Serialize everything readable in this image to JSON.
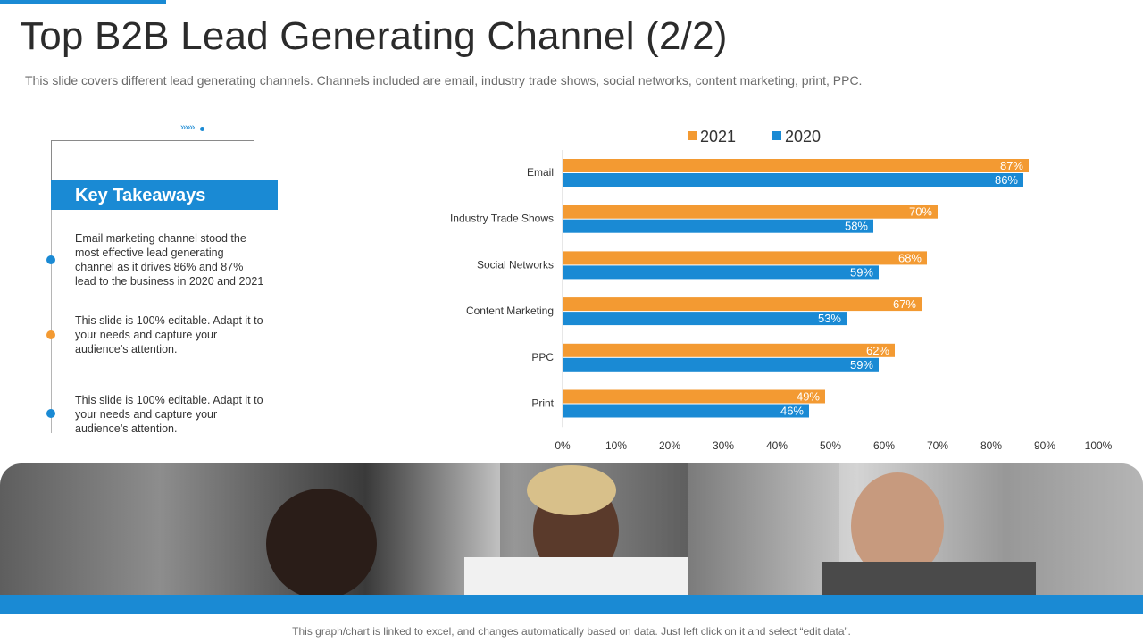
{
  "title": "Top B2B Lead Generating Channel (2/2)",
  "subtitle": "This slide covers different lead generating channels. Channels included are email, industry trade shows, social networks, content marketing, print, PPC.",
  "decor": {
    "arrows": "»»»"
  },
  "takeaways": {
    "header": "Key Takeaways",
    "items": [
      {
        "text": "Email marketing channel stood the\nmost effective lead generating\n channel as it drives 86% and 87%\nlead to the business in 2020 and 2021",
        "dot_color": "#1a8ad4"
      },
      {
        "text": "This slide is 100% editable. Adapt it to\nyour needs and capture your\naudience’s attention.",
        "dot_color": "#f39a32"
      },
      {
        "text": "This slide is 100% editable. Adapt it to\nyour needs and capture your\naudience’s attention.",
        "dot_color": "#1a8ad4"
      }
    ]
  },
  "chart_data": {
    "type": "bar",
    "orientation": "horizontal",
    "categories": [
      "Email",
      "Industry Trade Shows",
      "Social Networks",
      "Content Marketing",
      "PPC",
      "Print"
    ],
    "series": [
      {
        "name": "2021",
        "color": "#f39a32",
        "values": [
          87,
          70,
          68,
          67,
          62,
          49
        ]
      },
      {
        "name": "2020",
        "color": "#1a8ad4",
        "values": [
          86,
          58,
          59,
          53,
          59,
          46
        ]
      }
    ],
    "xlim": [
      0,
      100
    ],
    "ticks": [
      0,
      10,
      20,
      30,
      40,
      50,
      60,
      70,
      80,
      90,
      100
    ],
    "value_suffix": "%",
    "legend": "top"
  },
  "photo": {
    "label": "team photo"
  },
  "footer": "This graph/chart is linked to excel, and changes automatically based on data. Just left click on it and select “edit data”."
}
